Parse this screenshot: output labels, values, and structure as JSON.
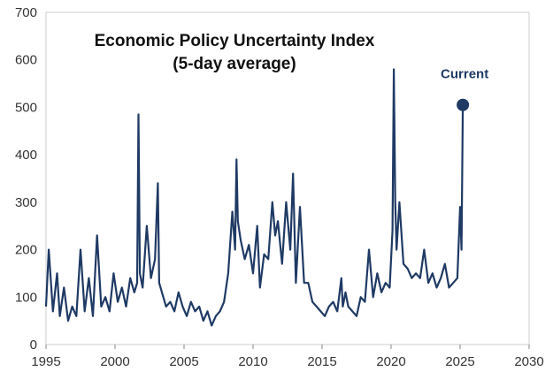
{
  "chart_data": {
    "type": "line",
    "title": "Economic Policy Uncertainty Index",
    "subtitle": "(5-day average)",
    "xlabel": "",
    "ylabel": "",
    "xlim": [
      1995,
      2030
    ],
    "ylim": [
      0,
      700
    ],
    "xticks": [
      1995,
      2000,
      2005,
      2010,
      2015,
      2020,
      2025,
      2030
    ],
    "yticks": [
      0,
      100,
      200,
      300,
      400,
      500,
      600,
      700
    ],
    "grid": false,
    "legend": "none",
    "colors": {
      "line": "#1f3a64",
      "marker": "#1f3a64"
    },
    "series": [
      {
        "x": [
          1995.0,
          1995.2,
          1995.5,
          1995.8,
          1996.0,
          1996.3,
          1996.6,
          1996.9,
          1997.2,
          1997.5,
          1997.8,
          1998.1,
          1998.4,
          1998.7,
          1999.0,
          1999.3,
          1999.6,
          1999.9,
          2000.2,
          2000.5,
          2000.8,
          2001.1,
          2001.4,
          2001.6,
          2001.7,
          2001.8,
          2002.0,
          2002.3,
          2002.6,
          2002.9,
          2003.1,
          2003.2,
          2003.4,
          2003.7,
          2004.0,
          2004.3,
          2004.6,
          2004.9,
          2005.2,
          2005.5,
          2005.8,
          2006.1,
          2006.4,
          2006.7,
          2007.0,
          2007.3,
          2007.6,
          2007.9,
          2008.2,
          2008.5,
          2008.7,
          2008.8,
          2008.9,
          2009.1,
          2009.4,
          2009.7,
          2010.0,
          2010.3,
          2010.5,
          2010.8,
          2011.1,
          2011.4,
          2011.6,
          2011.8,
          2012.1,
          2012.4,
          2012.7,
          2012.9,
          2013.1,
          2013.4,
          2013.7,
          2014.0,
          2014.3,
          2014.6,
          2014.9,
          2015.2,
          2015.5,
          2015.8,
          2016.1,
          2016.4,
          2016.5,
          2016.7,
          2016.9,
          2017.2,
          2017.5,
          2017.8,
          2018.1,
          2018.4,
          2018.7,
          2019.0,
          2019.3,
          2019.6,
          2019.9,
          2020.1,
          2020.2,
          2020.3,
          2020.4,
          2020.6,
          2020.9,
          2021.2,
          2021.5,
          2021.8,
          2022.1,
          2022.4,
          2022.7,
          2023.0,
          2023.3,
          2023.6,
          2023.9,
          2024.2,
          2024.5,
          2024.8,
          2025.0,
          2025.1,
          2025.2
        ],
        "y": [
          80,
          200,
          70,
          150,
          60,
          120,
          50,
          80,
          60,
          200,
          70,
          140,
          60,
          230,
          80,
          100,
          70,
          150,
          90,
          120,
          80,
          140,
          110,
          130,
          485,
          150,
          120,
          250,
          140,
          180,
          340,
          130,
          110,
          80,
          90,
          70,
          110,
          80,
          60,
          90,
          70,
          80,
          50,
          70,
          40,
          60,
          70,
          90,
          150,
          280,
          200,
          390,
          260,
          220,
          180,
          210,
          150,
          250,
          120,
          190,
          180,
          300,
          230,
          260,
          170,
          300,
          200,
          360,
          130,
          290,
          130,
          130,
          90,
          80,
          70,
          60,
          80,
          90,
          70,
          140,
          80,
          110,
          80,
          70,
          60,
          100,
          90,
          200,
          100,
          150,
          110,
          130,
          120,
          240,
          580,
          300,
          200,
          300,
          170,
          160,
          140,
          150,
          140,
          200,
          130,
          150,
          120,
          140,
          170,
          120,
          130,
          140,
          290,
          200,
          505
        ]
      }
    ],
    "annotation": {
      "text": "Current",
      "x": 2025.2,
      "y": 505
    }
  }
}
